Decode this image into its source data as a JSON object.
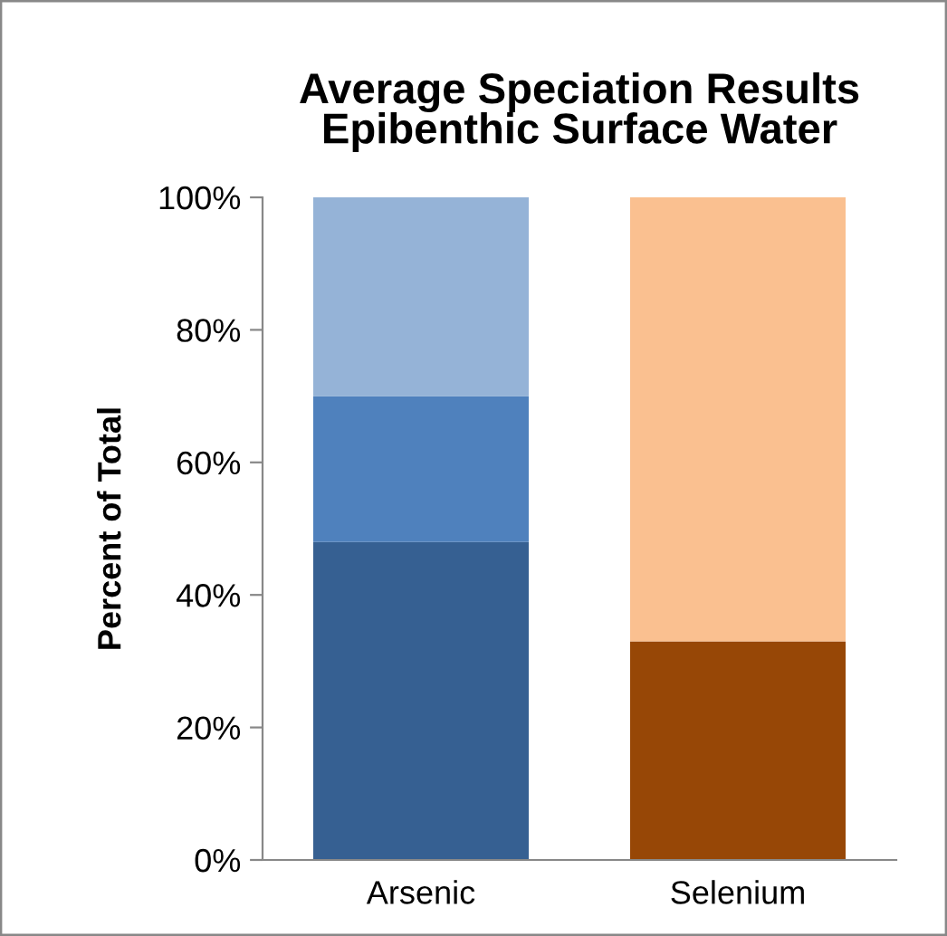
{
  "chart_data": {
    "type": "bar",
    "stacked": true,
    "title": "Average Speciation Results\nEpibenthic Surface Water",
    "ylabel": "Percent of Total",
    "categories": [
      "Arsenic",
      "Selenium"
    ],
    "series": [
      {
        "colors": [
          "#366092",
          "#974706"
        ],
        "values": [
          48,
          33
        ]
      },
      {
        "colors": [
          "#4f81bd",
          "#4f81bd"
        ],
        "values": [
          22,
          null
        ]
      },
      {
        "colors": [
          "#95b3d7",
          "#fac090"
        ],
        "values": [
          30,
          67
        ]
      }
    ],
    "ylim": [
      0,
      100
    ],
    "yticks": [
      {
        "value": 0,
        "label": "0%"
      },
      {
        "value": 20,
        "label": "20%"
      },
      {
        "value": 40,
        "label": "40%"
      },
      {
        "value": 60,
        "label": "60%"
      },
      {
        "value": 80,
        "label": "80%"
      },
      {
        "value": 100,
        "label": "100%"
      }
    ],
    "grid": false,
    "legend": false
  }
}
